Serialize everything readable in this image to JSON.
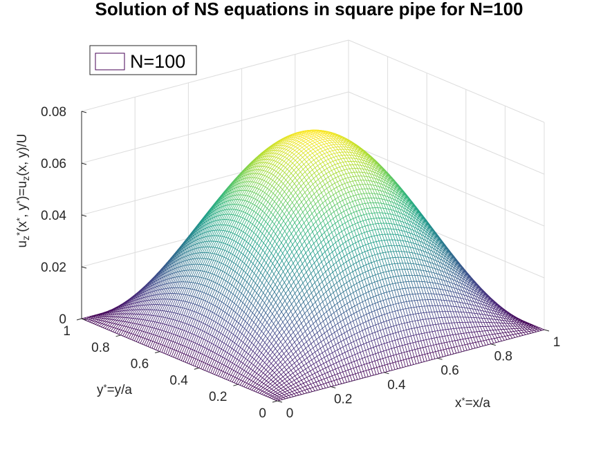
{
  "chart_data": {
    "type": "surface",
    "title": "Solution of NS equations in square pipe for N=100",
    "legend": {
      "entries": [
        "N=100"
      ],
      "placement": "top-left"
    },
    "xlabel": {
      "base": "x",
      "sup": "*",
      "rest": "=x/a"
    },
    "ylabel": {
      "base": "y",
      "sup": "*",
      "rest": "=y/a"
    },
    "zlabel": {
      "segments": [
        {
          "t": "u",
          "s": "n"
        },
        {
          "t": "z",
          "s": "sub"
        },
        {
          "t": "*",
          "s": "sup"
        },
        {
          "t": "(x",
          "s": "n"
        },
        {
          "t": "*",
          "s": "sup"
        },
        {
          "t": ", y",
          "s": "n"
        },
        {
          "t": "*",
          "s": "sup"
        },
        {
          "t": ")=u",
          "s": "n"
        },
        {
          "t": "z",
          "s": "sub"
        },
        {
          "t": "(x, y)/U",
          "s": "n"
        }
      ]
    },
    "xlim": [
      0,
      1
    ],
    "ylim": [
      0,
      1
    ],
    "zlim": [
      0,
      0.08
    ],
    "xticks": [
      "0",
      "0.2",
      "0.4",
      "0.6",
      "0.8",
      "1"
    ],
    "yticks": [
      "0",
      "0.2",
      "0.4",
      "0.6",
      "0.8",
      "1"
    ],
    "zticks": [
      "0",
      "0.02",
      "0.04",
      "0.06",
      "0.08"
    ],
    "grid": true,
    "colormap": "viridis",
    "grid_resolution": 100,
    "peak_value": 0.0737,
    "surface_model": "u*(x*,y*) = 0.0737 * sin(pi x*) * sin(pi y*)"
  }
}
